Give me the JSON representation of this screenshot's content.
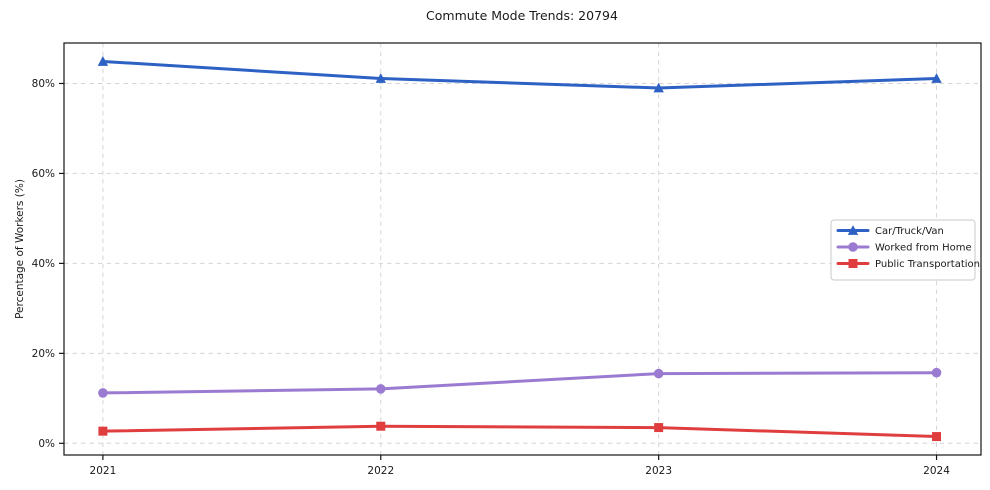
{
  "chart_data": {
    "type": "line",
    "title": "Commute Mode Trends: 20794",
    "xlabel": "",
    "ylabel": "Percentage of Workers (%)",
    "x": [
      2021,
      2022,
      2023,
      2024
    ],
    "x_tick_labels": [
      "2021",
      "2022",
      "2023",
      "2024"
    ],
    "y_ticks": [
      0,
      20,
      40,
      60,
      80
    ],
    "y_tick_labels": [
      "0%",
      "20%",
      "40%",
      "60%",
      "80%"
    ],
    "xlim": [
      2020.86,
      2024.16
    ],
    "ylim": [
      -2.6,
      89
    ],
    "grid": true,
    "legend_position": "center-right",
    "series": [
      {
        "name": "Car/Truck/Van",
        "color": "#2d61c3",
        "marker": "triangle",
        "values": [
          84.9,
          81.1,
          79.0,
          81.1
        ]
      },
      {
        "name": "Worked from Home",
        "color": "#9b7bd1",
        "marker": "circle",
        "values": [
          11.2,
          12.1,
          15.5,
          15.7
        ]
      },
      {
        "name": "Public Transportation",
        "color": "#e03e3e",
        "marker": "square",
        "values": [
          2.7,
          3.8,
          3.5,
          1.5
        ]
      }
    ]
  },
  "style": {
    "grid_color": "#d6d6d6",
    "axis_color": "#141414",
    "text_color": "#1a1a1a",
    "legend_border_color": "#c9c9c9",
    "legend_bg_color": "#ffffff"
  }
}
